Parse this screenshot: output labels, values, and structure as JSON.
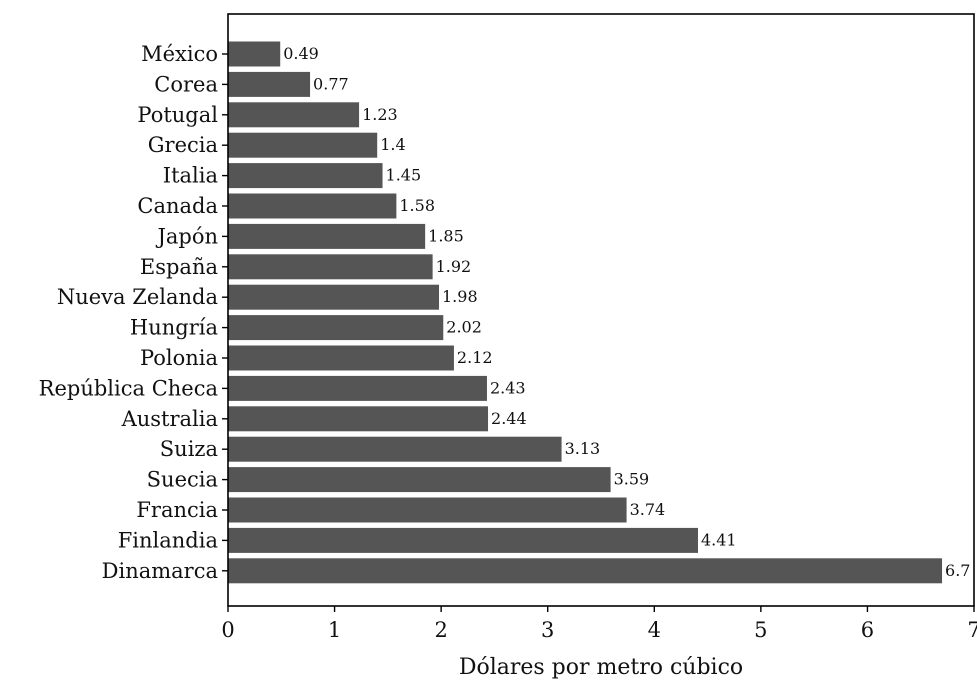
{
  "chart_data": {
    "type": "bar",
    "orientation": "horizontal",
    "title": "",
    "xlabel": "Dólares por metro cúbico",
    "ylabel": "",
    "xlim": [
      0,
      7
    ],
    "xticks": [
      "0",
      "1",
      "2",
      "3",
      "4",
      "5",
      "6",
      "7"
    ],
    "grid": false,
    "bar_color": "#555555",
    "categories": [
      "México",
      "Corea",
      "Potugal",
      "Grecia",
      "Italia",
      "Canada",
      "Japón",
      "España",
      "Nueva Zelanda",
      "Hungría",
      "Polonia",
      "República Checa",
      "Australia",
      "Suiza",
      "Suecia",
      "Francia",
      "Finlandia",
      "Dinamarca"
    ],
    "values": [
      0.49,
      0.77,
      1.23,
      1.4,
      1.45,
      1.58,
      1.85,
      1.92,
      1.98,
      2.02,
      2.12,
      2.43,
      2.44,
      3.13,
      3.59,
      3.74,
      4.41,
      6.7
    ],
    "value_labels": [
      "0.49",
      "0.77",
      "1.23",
      "1.4",
      "1.45",
      "1.58",
      "1.85",
      "1.92",
      "1.98",
      "2.02",
      "2.12",
      "2.43",
      "2.44",
      "3.13",
      "3.59",
      "3.74",
      "4.41",
      "6.7"
    ]
  }
}
